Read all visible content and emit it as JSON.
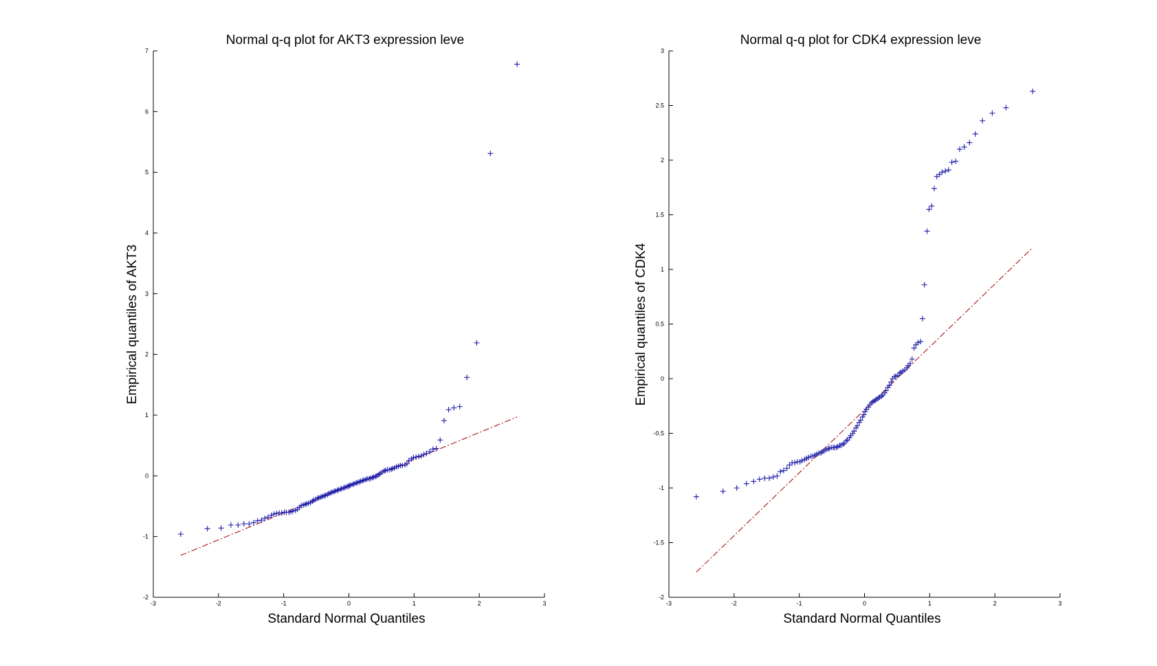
{
  "chart_data": [
    {
      "type": "scatter",
      "title": "Normal q-q plot for AKT3 expression leve",
      "xlabel": "Standard Normal Quantiles",
      "ylabel": "Empirical quantiles of AKT3",
      "xlim": [
        -3,
        3
      ],
      "ylim": [
        -2,
        7
      ],
      "xticks": [
        -3,
        -2,
        -1,
        0,
        1,
        2,
        3
      ],
      "yticks": [
        -2,
        -1,
        0,
        1,
        2,
        3,
        4,
        5,
        6,
        7
      ],
      "marker": "+",
      "colors": {
        "points": "#1a1aa8",
        "line": "#b22222"
      },
      "reference_line": {
        "x": [
          -2.58,
          2.58
        ],
        "y": [
          -1.31,
          0.97
        ],
        "style": "dash-dot"
      },
      "points": [
        [
          -2.58,
          -0.96
        ],
        [
          -2.17,
          -0.87
        ],
        [
          -1.96,
          -0.86
        ],
        [
          -1.81,
          -0.81
        ],
        [
          -1.7,
          -0.81
        ],
        [
          -1.61,
          -0.79
        ],
        [
          -1.53,
          -0.79
        ],
        [
          -1.46,
          -0.77
        ],
        [
          -1.4,
          -0.74
        ],
        [
          -1.34,
          -0.73
        ],
        [
          -1.29,
          -0.7
        ],
        [
          -1.24,
          -0.68
        ],
        [
          -1.19,
          -0.65
        ],
        [
          -1.15,
          -0.63
        ],
        [
          -1.11,
          -0.62
        ],
        [
          -1.07,
          -0.61
        ],
        [
          -1.03,
          -0.61
        ],
        [
          -0.99,
          -0.6
        ],
        [
          -0.96,
          -0.6
        ],
        [
          -0.92,
          -0.6
        ],
        [
          -0.89,
          -0.59
        ],
        [
          -0.86,
          -0.58
        ],
        [
          -0.82,
          -0.57
        ],
        [
          -0.79,
          -0.55
        ],
        [
          -0.76,
          -0.52
        ],
        [
          -0.73,
          -0.49
        ],
        [
          -0.7,
          -0.48
        ],
        [
          -0.67,
          -0.47
        ],
        [
          -0.65,
          -0.46
        ],
        [
          -0.62,
          -0.45
        ],
        [
          -0.59,
          -0.44
        ],
        [
          -0.56,
          -0.42
        ],
        [
          -0.54,
          -0.4
        ],
        [
          -0.51,
          -0.39
        ],
        [
          -0.48,
          -0.37
        ],
        [
          -0.46,
          -0.36
        ],
        [
          -0.43,
          -0.35
        ],
        [
          -0.41,
          -0.34
        ],
        [
          -0.38,
          -0.33
        ],
        [
          -0.36,
          -0.32
        ],
        [
          -0.33,
          -0.31
        ],
        [
          -0.31,
          -0.29
        ],
        [
          -0.28,
          -0.28
        ],
        [
          -0.26,
          -0.27
        ],
        [
          -0.23,
          -0.26
        ],
        [
          -0.21,
          -0.25
        ],
        [
          -0.18,
          -0.24
        ],
        [
          -0.16,
          -0.23
        ],
        [
          -0.13,
          -0.22
        ],
        [
          -0.11,
          -0.21
        ],
        [
          -0.08,
          -0.2
        ],
        [
          -0.06,
          -0.19
        ],
        [
          -0.03,
          -0.18
        ],
        [
          -0.01,
          -0.17
        ],
        [
          0.01,
          -0.16
        ],
        [
          0.03,
          -0.15
        ],
        [
          0.06,
          -0.14
        ],
        [
          0.08,
          -0.13
        ],
        [
          0.11,
          -0.12
        ],
        [
          0.13,
          -0.11
        ],
        [
          0.16,
          -0.1
        ],
        [
          0.18,
          -0.09
        ],
        [
          0.21,
          -0.08
        ],
        [
          0.23,
          -0.07
        ],
        [
          0.26,
          -0.06
        ],
        [
          0.28,
          -0.05
        ],
        [
          0.31,
          -0.05
        ],
        [
          0.33,
          -0.04
        ],
        [
          0.36,
          -0.03
        ],
        [
          0.38,
          -0.02
        ],
        [
          0.41,
          -0.01
        ],
        [
          0.43,
          0.0
        ],
        [
          0.46,
          0.02
        ],
        [
          0.48,
          0.04
        ],
        [
          0.51,
          0.06
        ],
        [
          0.54,
          0.08
        ],
        [
          0.56,
          0.09
        ],
        [
          0.59,
          0.1
        ],
        [
          0.62,
          0.1
        ],
        [
          0.65,
          0.11
        ],
        [
          0.67,
          0.12
        ],
        [
          0.7,
          0.13
        ],
        [
          0.73,
          0.15
        ],
        [
          0.76,
          0.16
        ],
        [
          0.79,
          0.17
        ],
        [
          0.82,
          0.17
        ],
        [
          0.86,
          0.18
        ],
        [
          0.89,
          0.2
        ],
        [
          0.92,
          0.25
        ],
        [
          0.96,
          0.28
        ],
        [
          0.99,
          0.3
        ],
        [
          1.03,
          0.31
        ],
        [
          1.07,
          0.32
        ],
        [
          1.11,
          0.33
        ],
        [
          1.15,
          0.35
        ],
        [
          1.19,
          0.37
        ],
        [
          1.24,
          0.4
        ],
        [
          1.29,
          0.44
        ],
        [
          1.34,
          0.45
        ],
        [
          1.4,
          0.59
        ],
        [
          1.46,
          0.91
        ],
        [
          1.53,
          1.09
        ],
        [
          1.61,
          1.12
        ],
        [
          1.7,
          1.14
        ],
        [
          1.81,
          1.62
        ],
        [
          1.96,
          2.19
        ],
        [
          2.17,
          5.31
        ],
        [
          2.58,
          6.78
        ]
      ]
    },
    {
      "type": "scatter",
      "title": "Normal q-q plot for CDK4 expression leve",
      "xlabel": "Standard Normal Quantiles",
      "ylabel": "Empirical quantiles of CDK4",
      "xlim": [
        -3,
        3
      ],
      "ylim": [
        -2,
        3
      ],
      "xticks": [
        -3,
        -2,
        -1,
        0,
        1,
        2,
        3
      ],
      "yticks": [
        -2,
        -1.5,
        -1,
        -0.5,
        0,
        0.5,
        1,
        1.5,
        2,
        2.5,
        3
      ],
      "marker": "+",
      "colors": {
        "points": "#1a1aa8",
        "line": "#b22222"
      },
      "reference_line": {
        "x": [
          -2.58,
          2.58
        ],
        "y": [
          -1.77,
          1.2
        ],
        "style": "dash-dot"
      },
      "points": [
        [
          -2.58,
          -1.08
        ],
        [
          -2.17,
          -1.03
        ],
        [
          -1.96,
          -1.0
        ],
        [
          -1.81,
          -0.96
        ],
        [
          -1.7,
          -0.94
        ],
        [
          -1.61,
          -0.92
        ],
        [
          -1.53,
          -0.91
        ],
        [
          -1.46,
          -0.91
        ],
        [
          -1.4,
          -0.9
        ],
        [
          -1.34,
          -0.89
        ],
        [
          -1.29,
          -0.85
        ],
        [
          -1.24,
          -0.84
        ],
        [
          -1.19,
          -0.82
        ],
        [
          -1.15,
          -0.79
        ],
        [
          -1.11,
          -0.77
        ],
        [
          -1.07,
          -0.77
        ],
        [
          -1.03,
          -0.76
        ],
        [
          -0.99,
          -0.76
        ],
        [
          -0.96,
          -0.75
        ],
        [
          -0.92,
          -0.74
        ],
        [
          -0.89,
          -0.73
        ],
        [
          -0.86,
          -0.72
        ],
        [
          -0.82,
          -0.71
        ],
        [
          -0.79,
          -0.71
        ],
        [
          -0.76,
          -0.7
        ],
        [
          -0.73,
          -0.69
        ],
        [
          -0.7,
          -0.68
        ],
        [
          -0.67,
          -0.68
        ],
        [
          -0.65,
          -0.67
        ],
        [
          -0.62,
          -0.66
        ],
        [
          -0.59,
          -0.65
        ],
        [
          -0.56,
          -0.64
        ],
        [
          -0.54,
          -0.64
        ],
        [
          -0.51,
          -0.63
        ],
        [
          -0.48,
          -0.63
        ],
        [
          -0.46,
          -0.63
        ],
        [
          -0.43,
          -0.63
        ],
        [
          -0.41,
          -0.62
        ],
        [
          -0.38,
          -0.61
        ],
        [
          -0.36,
          -0.61
        ],
        [
          -0.33,
          -0.6
        ],
        [
          -0.31,
          -0.59
        ],
        [
          -0.28,
          -0.57
        ],
        [
          -0.26,
          -0.56
        ],
        [
          -0.23,
          -0.54
        ],
        [
          -0.21,
          -0.52
        ],
        [
          -0.18,
          -0.5
        ],
        [
          -0.16,
          -0.48
        ],
        [
          -0.13,
          -0.45
        ],
        [
          -0.11,
          -0.43
        ],
        [
          -0.08,
          -0.4
        ],
        [
          -0.06,
          -0.38
        ],
        [
          -0.03,
          -0.35
        ],
        [
          -0.01,
          -0.33
        ],
        [
          0.01,
          -0.3
        ],
        [
          0.03,
          -0.28
        ],
        [
          0.06,
          -0.26
        ],
        [
          0.08,
          -0.24
        ],
        [
          0.11,
          -0.22
        ],
        [
          0.13,
          -0.21
        ],
        [
          0.16,
          -0.2
        ],
        [
          0.18,
          -0.19
        ],
        [
          0.21,
          -0.18
        ],
        [
          0.23,
          -0.17
        ],
        [
          0.26,
          -0.16
        ],
        [
          0.28,
          -0.15
        ],
        [
          0.31,
          -0.13
        ],
        [
          0.33,
          -0.11
        ],
        [
          0.36,
          -0.08
        ],
        [
          0.38,
          -0.06
        ],
        [
          0.41,
          -0.03
        ],
        [
          0.43,
          0.0
        ],
        [
          0.46,
          0.02
        ],
        [
          0.48,
          0.02
        ],
        [
          0.51,
          0.03
        ],
        [
          0.54,
          0.05
        ],
        [
          0.56,
          0.06
        ],
        [
          0.59,
          0.07
        ],
        [
          0.62,
          0.08
        ],
        [
          0.65,
          0.1
        ],
        [
          0.67,
          0.12
        ],
        [
          0.7,
          0.14
        ],
        [
          0.73,
          0.18
        ],
        [
          0.76,
          0.28
        ],
        [
          0.79,
          0.31
        ],
        [
          0.82,
          0.33
        ],
        [
          0.86,
          0.34
        ],
        [
          0.89,
          0.55
        ],
        [
          0.92,
          0.86
        ],
        [
          0.96,
          1.35
        ],
        [
          0.99,
          1.55
        ],
        [
          1.03,
          1.58
        ],
        [
          1.07,
          1.74
        ],
        [
          1.11,
          1.85
        ],
        [
          1.15,
          1.87
        ],
        [
          1.19,
          1.89
        ],
        [
          1.24,
          1.9
        ],
        [
          1.29,
          1.91
        ],
        [
          1.34,
          1.98
        ],
        [
          1.4,
          1.99
        ],
        [
          1.46,
          2.1
        ],
        [
          1.53,
          2.12
        ],
        [
          1.61,
          2.16
        ],
        [
          1.7,
          2.24
        ],
        [
          1.81,
          2.36
        ],
        [
          1.96,
          2.43
        ],
        [
          2.17,
          2.48
        ],
        [
          2.58,
          2.63
        ]
      ]
    }
  ]
}
